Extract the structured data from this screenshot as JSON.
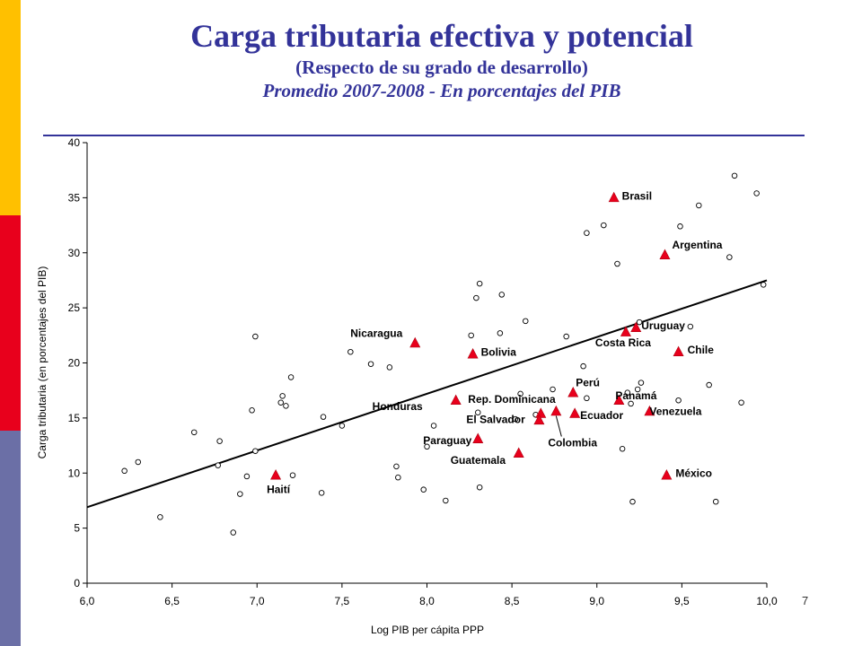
{
  "title": "Carga tributaria efectiva y potencial",
  "subtitle": "(Respecto de su grado de desarrollo)",
  "subtitle2": "Promedio 2007-2008 - En porcentajes del PIB",
  "page_number": "7",
  "colors": {
    "accent": "#333399",
    "marker": "#E8001C",
    "bar_yellow": "#FFC000",
    "bar_red": "#E8001C",
    "bar_blue": "#6B6FA6"
  },
  "chart_data": {
    "type": "scatter",
    "xlabel": "Log PIB per cápita PPP",
    "ylabel": "Carga tributaria (en porcentajes del PIB)",
    "xlim": [
      6.0,
      10.0
    ],
    "ylim": [
      0,
      40
    ],
    "xticks": [
      "6,0",
      "6,5",
      "7,0",
      "7,5",
      "8,0",
      "8,5",
      "9,0",
      "9,5",
      "10,0"
    ],
    "yticks": [
      "0",
      "5",
      "10",
      "15",
      "20",
      "25",
      "30",
      "35",
      "40"
    ],
    "grid": false,
    "trendline": {
      "x": [
        6.0,
        10.0
      ],
      "y": [
        6.9,
        27.5
      ]
    },
    "highlighted": [
      {
        "label": "Brasil",
        "x": 9.1,
        "y": 35.0
      },
      {
        "label": "Argentina",
        "x": 9.4,
        "y": 29.8
      },
      {
        "label": "Uruguay",
        "x": 9.23,
        "y": 23.2
      },
      {
        "label": "Costa Rica",
        "x": 9.17,
        "y": 22.8
      },
      {
        "label": "Chile",
        "x": 9.48,
        "y": 21.0
      },
      {
        "label": "Nicaragua",
        "x": 7.93,
        "y": 21.8
      },
      {
        "label": "Bolivia",
        "x": 8.27,
        "y": 20.8
      },
      {
        "label": "Perú",
        "x": 8.86,
        "y": 17.3
      },
      {
        "label": "Panamá",
        "x": 9.13,
        "y": 16.6
      },
      {
        "label": "Rep. Dominicana",
        "x": 8.67,
        "y": 15.4
      },
      {
        "label": "Honduras",
        "x": 8.17,
        "y": 16.6
      },
      {
        "label": "El Salvador",
        "x": 8.66,
        "y": 14.8
      },
      {
        "label": "Ecuador",
        "x": 8.87,
        "y": 15.4
      },
      {
        "label": "Venezuela",
        "x": 9.31,
        "y": 15.6
      },
      {
        "label": "Colombia",
        "x": 8.76,
        "y": 15.6
      },
      {
        "label": "Paraguay",
        "x": 8.3,
        "y": 13.1
      },
      {
        "label": "Guatemala",
        "x": 8.54,
        "y": 11.8
      },
      {
        "label": "Haití",
        "x": 7.11,
        "y": 9.8
      },
      {
        "label": "México",
        "x": 9.41,
        "y": 9.8
      }
    ],
    "others": [
      {
        "x": 6.22,
        "y": 10.2
      },
      {
        "x": 6.3,
        "y": 11.0
      },
      {
        "x": 6.43,
        "y": 6.0
      },
      {
        "x": 6.63,
        "y": 13.7
      },
      {
        "x": 6.77,
        "y": 10.7
      },
      {
        "x": 6.78,
        "y": 12.9
      },
      {
        "x": 6.86,
        "y": 4.6
      },
      {
        "x": 6.9,
        "y": 8.1
      },
      {
        "x": 6.94,
        "y": 9.7
      },
      {
        "x": 6.97,
        "y": 15.7
      },
      {
        "x": 6.99,
        "y": 12.0
      },
      {
        "x": 6.99,
        "y": 22.4
      },
      {
        "x": 7.14,
        "y": 16.4
      },
      {
        "x": 7.15,
        "y": 17.0
      },
      {
        "x": 7.17,
        "y": 16.1
      },
      {
        "x": 7.2,
        "y": 18.7
      },
      {
        "x": 7.21,
        "y": 9.8
      },
      {
        "x": 7.38,
        "y": 8.2
      },
      {
        "x": 7.39,
        "y": 15.1
      },
      {
        "x": 7.5,
        "y": 14.3
      },
      {
        "x": 7.55,
        "y": 21.0
      },
      {
        "x": 7.67,
        "y": 19.9
      },
      {
        "x": 7.78,
        "y": 19.6
      },
      {
        "x": 7.82,
        "y": 10.6
      },
      {
        "x": 7.83,
        "y": 9.6
      },
      {
        "x": 7.98,
        "y": 8.5
      },
      {
        "x": 8.0,
        "y": 12.4
      },
      {
        "x": 8.04,
        "y": 14.3
      },
      {
        "x": 8.11,
        "y": 7.5
      },
      {
        "x": 8.26,
        "y": 22.5
      },
      {
        "x": 8.29,
        "y": 25.9
      },
      {
        "x": 8.31,
        "y": 27.2
      },
      {
        "x": 8.31,
        "y": 8.7
      },
      {
        "x": 8.3,
        "y": 15.5
      },
      {
        "x": 8.44,
        "y": 26.2
      },
      {
        "x": 8.43,
        "y": 22.7
      },
      {
        "x": 8.52,
        "y": 14.9
      },
      {
        "x": 8.55,
        "y": 17.2
      },
      {
        "x": 8.58,
        "y": 23.8
      },
      {
        "x": 8.64,
        "y": 15.3
      },
      {
        "x": 8.74,
        "y": 17.6
      },
      {
        "x": 8.82,
        "y": 22.4
      },
      {
        "x": 8.92,
        "y": 19.7
      },
      {
        "x": 8.94,
        "y": 31.8
      },
      {
        "x": 8.94,
        "y": 16.8
      },
      {
        "x": 9.04,
        "y": 32.5
      },
      {
        "x": 9.12,
        "y": 29.0
      },
      {
        "x": 9.15,
        "y": 12.2
      },
      {
        "x": 9.18,
        "y": 17.3
      },
      {
        "x": 9.2,
        "y": 16.3
      },
      {
        "x": 9.21,
        "y": 7.4
      },
      {
        "x": 9.25,
        "y": 23.7
      },
      {
        "x": 9.26,
        "y": 18.2
      },
      {
        "x": 9.24,
        "y": 17.6
      },
      {
        "x": 9.48,
        "y": 16.6
      },
      {
        "x": 9.49,
        "y": 32.4
      },
      {
        "x": 9.55,
        "y": 23.3
      },
      {
        "x": 9.6,
        "y": 34.3
      },
      {
        "x": 9.66,
        "y": 18.0
      },
      {
        "x": 9.7,
        "y": 7.4
      },
      {
        "x": 9.78,
        "y": 29.6
      },
      {
        "x": 9.81,
        "y": 37.0
      },
      {
        "x": 9.85,
        "y": 16.4
      },
      {
        "x": 9.94,
        "y": 35.4
      },
      {
        "x": 9.98,
        "y": 27.1
      }
    ]
  }
}
